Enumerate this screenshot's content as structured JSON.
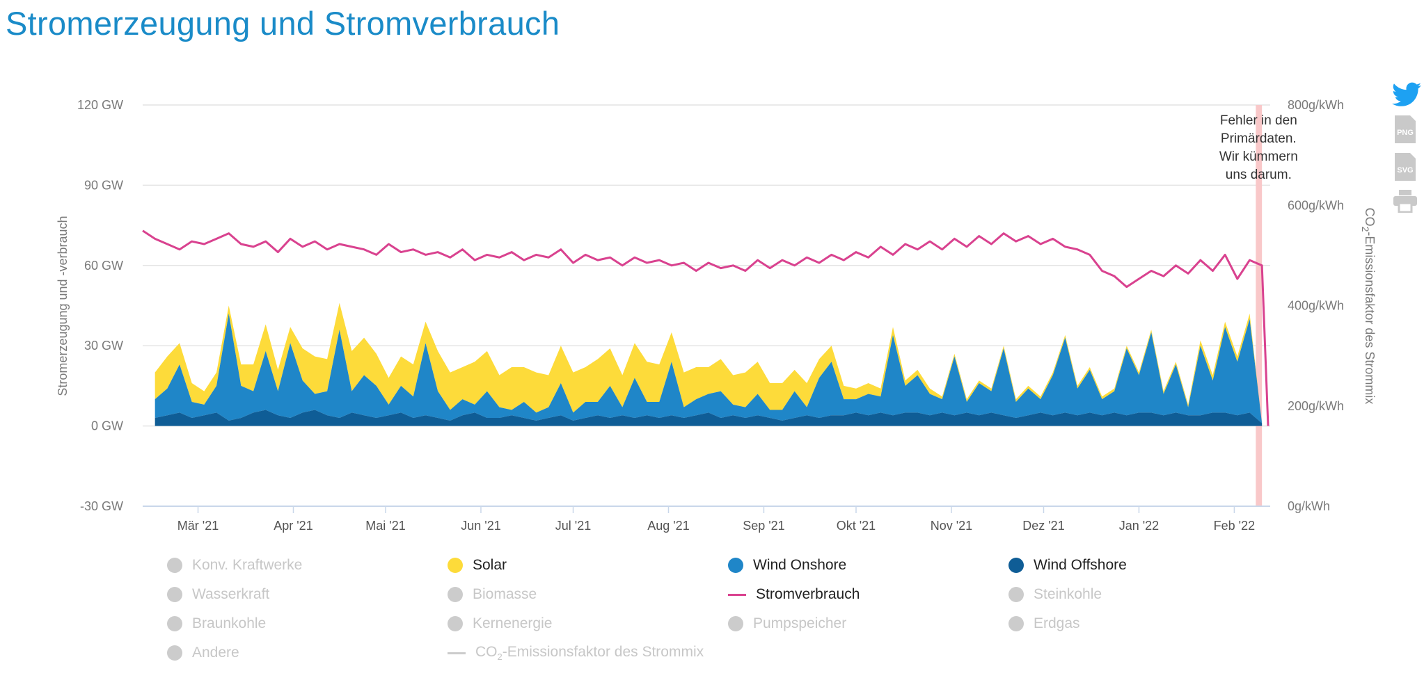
{
  "title": "Stromerzeugung und Stromverbrauch",
  "colors": {
    "solar": "#fddb3a",
    "wind_onshore": "#1f86c8",
    "wind_offshore": "#0f5d96",
    "consumption": "#d9428f",
    "error_band": "#f9c8c9",
    "inactive": "#cccccc",
    "grid": "#e4e4e4",
    "axis": "#c9d7ea"
  },
  "chart_data": {
    "type": "area",
    "title": "Stromerzeugung und Stromverbrauch",
    "ylabel_left": "Stromerzeugung und -verbrauch",
    "ylabel_right_prefix": "CO",
    "ylabel_right_sub": "2",
    "ylabel_right_suffix": "-Emissionsfaktor des Strommix",
    "ylim_left": [
      -30,
      120
    ],
    "ylim_right": [
      0,
      800
    ],
    "y_ticks_left": [
      "120 GW",
      "90 GW",
      "60 GW",
      "30 GW",
      "0 GW",
      "-30 GW"
    ],
    "y_ticks_right": [
      "800g/kWh",
      "600g/kWh",
      "400g/kWh",
      "200g/kWh",
      "0g/kWh"
    ],
    "x_range_days": [
      0,
      366
    ],
    "x_ticks": [
      {
        "label": "Mär '21",
        "day": 18
      },
      {
        "label": "Apr '21",
        "day": 49
      },
      {
        "label": "Mai '21",
        "day": 79
      },
      {
        "label": "Jun '21",
        "day": 110
      },
      {
        "label": "Jul '21",
        "day": 140
      },
      {
        "label": "Aug '21",
        "day": 171
      },
      {
        "label": "Sep '21",
        "day": 202
      },
      {
        "label": "Okt '21",
        "day": 232
      },
      {
        "label": "Nov '21",
        "day": 263
      },
      {
        "label": "Dez '21",
        "day": 293
      },
      {
        "label": "Jan '22",
        "day": 324
      },
      {
        "label": "Feb '22",
        "day": 355
      }
    ],
    "series": [
      {
        "name": "Wind Offshore",
        "unit": "GW",
        "x": [
          4,
          8,
          12,
          16,
          20,
          24,
          28,
          32,
          36,
          40,
          44,
          48,
          52,
          56,
          60,
          64,
          68,
          72,
          76,
          80,
          84,
          88,
          92,
          96,
          100,
          104,
          108,
          112,
          116,
          120,
          124,
          128,
          132,
          136,
          140,
          144,
          148,
          152,
          156,
          160,
          164,
          168,
          172,
          176,
          180,
          184,
          188,
          192,
          196,
          200,
          204,
          208,
          212,
          216,
          220,
          224,
          228,
          232,
          236,
          240,
          244,
          248,
          252,
          256,
          260,
          264,
          268,
          272,
          276,
          280,
          284,
          288,
          292,
          296,
          300,
          304,
          308,
          312,
          316,
          320,
          324,
          328,
          332,
          336,
          340,
          344,
          348,
          352,
          356,
          360,
          364
        ],
        "values": [
          3,
          4,
          5,
          3,
          4,
          5,
          2,
          3,
          5,
          6,
          4,
          3,
          5,
          6,
          4,
          3,
          5,
          4,
          3,
          4,
          5,
          3,
          4,
          3,
          2,
          4,
          5,
          3,
          3,
          4,
          3,
          2,
          3,
          4,
          2,
          3,
          4,
          3,
          4,
          3,
          4,
          3,
          4,
          3,
          4,
          5,
          3,
          4,
          3,
          4,
          3,
          2,
          3,
          4,
          3,
          4,
          4,
          5,
          4,
          5,
          4,
          5,
          5,
          4,
          5,
          4,
          5,
          4,
          5,
          4,
          3,
          4,
          5,
          4,
          5,
          4,
          5,
          4,
          5,
          4,
          5,
          5,
          4,
          5,
          4,
          4,
          5,
          5,
          4,
          5,
          1
        ]
      },
      {
        "name": "Wind Onshore",
        "unit": "GW",
        "x": [
          4,
          8,
          12,
          16,
          20,
          24,
          28,
          32,
          36,
          40,
          44,
          48,
          52,
          56,
          60,
          64,
          68,
          72,
          76,
          80,
          84,
          88,
          92,
          96,
          100,
          104,
          108,
          112,
          116,
          120,
          124,
          128,
          132,
          136,
          140,
          144,
          148,
          152,
          156,
          160,
          164,
          168,
          172,
          176,
          180,
          184,
          188,
          192,
          196,
          200,
          204,
          208,
          212,
          216,
          220,
          224,
          228,
          232,
          236,
          240,
          244,
          248,
          252,
          256,
          260,
          264,
          268,
          272,
          276,
          280,
          284,
          288,
          292,
          296,
          300,
          304,
          308,
          312,
          316,
          320,
          324,
          328,
          332,
          336,
          340,
          344,
          348,
          352,
          356,
          360,
          364
        ],
        "values": [
          7,
          10,
          18,
          6,
          4,
          10,
          40,
          12,
          8,
          22,
          9,
          28,
          12,
          6,
          9,
          33,
          8,
          15,
          12,
          4,
          10,
          8,
          27,
          10,
          4,
          6,
          3,
          10,
          4,
          2,
          6,
          3,
          4,
          12,
          3,
          6,
          5,
          12,
          3,
          15,
          5,
          6,
          20,
          4,
          6,
          7,
          10,
          4,
          4,
          8,
          3,
          4,
          10,
          3,
          15,
          20,
          6,
          5,
          8,
          6,
          30,
          10,
          14,
          8,
          5,
          22,
          4,
          12,
          8,
          25,
          6,
          10,
          5,
          15,
          28,
          10,
          16,
          6,
          8,
          25,
          14,
          30,
          8,
          18,
          3,
          26,
          12,
          32,
          20,
          35,
          0
        ]
      },
      {
        "name": "Solar",
        "unit": "GW",
        "x": [
          4,
          8,
          12,
          16,
          20,
          24,
          28,
          32,
          36,
          40,
          44,
          48,
          52,
          56,
          60,
          64,
          68,
          72,
          76,
          80,
          84,
          88,
          92,
          96,
          100,
          104,
          108,
          112,
          116,
          120,
          124,
          128,
          132,
          136,
          140,
          144,
          148,
          152,
          156,
          160,
          164,
          168,
          172,
          176,
          180,
          184,
          188,
          192,
          196,
          200,
          204,
          208,
          212,
          216,
          220,
          224,
          228,
          232,
          236,
          240,
          244,
          248,
          252,
          256,
          260,
          264,
          268,
          272,
          276,
          280,
          284,
          288,
          292,
          296,
          300,
          304,
          308,
          312,
          316,
          320,
          324,
          328,
          332,
          336,
          340,
          344,
          348,
          352,
          356,
          360,
          364
        ],
        "values": [
          10,
          12,
          8,
          7,
          5,
          5,
          3,
          8,
          10,
          10,
          8,
          6,
          12,
          14,
          12,
          10,
          15,
          14,
          12,
          10,
          11,
          12,
          8,
          15,
          14,
          12,
          16,
          15,
          12,
          16,
          13,
          15,
          12,
          14,
          15,
          13,
          16,
          14,
          12,
          13,
          15,
          14,
          11,
          13,
          12,
          10,
          12,
          11,
          13,
          12,
          10,
          10,
          8,
          9,
          7,
          6,
          5,
          4,
          4,
          3,
          3,
          2,
          2,
          2,
          1,
          1,
          1,
          1,
          1,
          1,
          1,
          1,
          1,
          1,
          1,
          1,
          1,
          1,
          1,
          1,
          1,
          1,
          1,
          1,
          1,
          2,
          2,
          2,
          2,
          2,
          0
        ]
      },
      {
        "name": "Stromverbrauch",
        "unit": "GW",
        "x": [
          0,
          4,
          8,
          12,
          16,
          20,
          24,
          28,
          32,
          36,
          40,
          44,
          48,
          52,
          56,
          60,
          64,
          68,
          72,
          76,
          80,
          84,
          88,
          92,
          96,
          100,
          104,
          108,
          112,
          116,
          120,
          124,
          128,
          132,
          136,
          140,
          144,
          148,
          152,
          156,
          160,
          164,
          168,
          172,
          176,
          180,
          184,
          188,
          192,
          196,
          200,
          204,
          208,
          212,
          216,
          220,
          224,
          228,
          232,
          236,
          240,
          244,
          248,
          252,
          256,
          260,
          264,
          268,
          272,
          276,
          280,
          284,
          288,
          292,
          296,
          300,
          304,
          308,
          312,
          316,
          320,
          324,
          328,
          332,
          336,
          340,
          344,
          348,
          352,
          356,
          360,
          364,
          366
        ],
        "values": [
          73,
          70,
          68,
          66,
          69,
          68,
          70,
          72,
          68,
          67,
          69,
          65,
          70,
          67,
          69,
          66,
          68,
          67,
          66,
          64,
          68,
          65,
          66,
          64,
          65,
          63,
          66,
          62,
          64,
          63,
          65,
          62,
          64,
          63,
          66,
          61,
          64,
          62,
          63,
          60,
          63,
          61,
          62,
          60,
          61,
          58,
          61,
          59,
          60,
          58,
          62,
          59,
          62,
          60,
          63,
          61,
          64,
          62,
          65,
          63,
          67,
          64,
          68,
          66,
          69,
          66,
          70,
          67,
          71,
          68,
          72,
          69,
          71,
          68,
          70,
          67,
          66,
          64,
          58,
          56,
          52,
          55,
          58,
          56,
          60,
          57,
          62,
          58,
          64,
          55,
          62,
          60,
          0
        ]
      }
    ],
    "annotation": {
      "lines": [
        "Fehler in den",
        "Primärdaten.",
        "Wir kümmern",
        "uns darum."
      ],
      "day_from": 362,
      "day_to": 364
    }
  },
  "legend": {
    "items": [
      {
        "label": "Konv. Kraftwerke",
        "active": false,
        "kind": "dot"
      },
      {
        "label": "Solar",
        "active": true,
        "kind": "dot",
        "color": "#fddb3a"
      },
      {
        "label": "Wind Onshore",
        "active": true,
        "kind": "dot",
        "color": "#1f86c8"
      },
      {
        "label": "Wind Offshore",
        "active": true,
        "kind": "dot",
        "color": "#0f5d96"
      },
      {
        "label": "Wasserkraft",
        "active": false,
        "kind": "dot"
      },
      {
        "label": "Biomasse",
        "active": false,
        "kind": "dot"
      },
      {
        "label": "Stromverbrauch",
        "active": true,
        "kind": "line",
        "color": "#d9428f"
      },
      {
        "label": "Steinkohle",
        "active": false,
        "kind": "dot"
      },
      {
        "label": "Braunkohle",
        "active": false,
        "kind": "dot"
      },
      {
        "label": "Kernenergie",
        "active": false,
        "kind": "dot"
      },
      {
        "label": "Pumpspeicher",
        "active": false,
        "kind": "dot"
      },
      {
        "label": "Erdgas",
        "active": false,
        "kind": "dot"
      },
      {
        "label": "Andere",
        "active": false,
        "kind": "dot"
      }
    ],
    "co2_item": {
      "prefix": "CO",
      "sub": "2",
      "suffix": "-Emissionsfaktor des Strommix",
      "active": false
    }
  },
  "tools": {
    "twitter_icon": "twitter-bird",
    "png_label": "PNG",
    "svg_label": "SVG",
    "print_icon": "printer"
  }
}
